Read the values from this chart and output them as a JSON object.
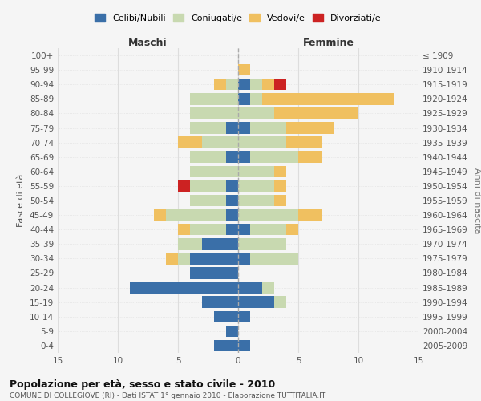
{
  "age_groups": [
    "0-4",
    "5-9",
    "10-14",
    "15-19",
    "20-24",
    "25-29",
    "30-34",
    "35-39",
    "40-44",
    "45-49",
    "50-54",
    "55-59",
    "60-64",
    "65-69",
    "70-74",
    "75-79",
    "80-84",
    "85-89",
    "90-94",
    "95-99",
    "100+"
  ],
  "birth_years": [
    "2005-2009",
    "2000-2004",
    "1995-1999",
    "1990-1994",
    "1985-1989",
    "1980-1984",
    "1975-1979",
    "1970-1974",
    "1965-1969",
    "1960-1964",
    "1955-1959",
    "1950-1954",
    "1945-1949",
    "1940-1944",
    "1935-1939",
    "1930-1934",
    "1925-1929",
    "1920-1924",
    "1915-1919",
    "1910-1914",
    "≤ 1909"
  ],
  "male": {
    "celibi": [
      2,
      1,
      2,
      3,
      9,
      4,
      4,
      3,
      1,
      1,
      1,
      1,
      0,
      1,
      0,
      1,
      0,
      0,
      0,
      0,
      0
    ],
    "coniugati": [
      0,
      0,
      0,
      0,
      0,
      0,
      1,
      2,
      3,
      5,
      3,
      3,
      4,
      3,
      3,
      3,
      4,
      4,
      1,
      0,
      0
    ],
    "vedovi": [
      0,
      0,
      0,
      0,
      0,
      0,
      1,
      0,
      1,
      1,
      0,
      0,
      0,
      0,
      2,
      0,
      0,
      0,
      1,
      0,
      0
    ],
    "divorziati": [
      0,
      0,
      0,
      0,
      0,
      0,
      0,
      0,
      0,
      0,
      0,
      1,
      0,
      0,
      0,
      0,
      0,
      0,
      0,
      0,
      0
    ]
  },
  "female": {
    "nubili": [
      1,
      0,
      1,
      3,
      2,
      0,
      1,
      0,
      1,
      0,
      0,
      0,
      0,
      1,
      0,
      1,
      0,
      1,
      1,
      0,
      0
    ],
    "coniugate": [
      0,
      0,
      0,
      1,
      1,
      0,
      4,
      4,
      3,
      5,
      3,
      3,
      3,
      4,
      4,
      3,
      3,
      1,
      1,
      0,
      0
    ],
    "vedove": [
      0,
      0,
      0,
      0,
      0,
      0,
      0,
      0,
      1,
      2,
      1,
      1,
      1,
      2,
      3,
      4,
      7,
      11,
      1,
      1,
      0
    ],
    "divorziate": [
      0,
      0,
      0,
      0,
      0,
      0,
      0,
      0,
      0,
      0,
      0,
      0,
      0,
      0,
      0,
      0,
      0,
      0,
      1,
      0,
      0
    ]
  },
  "colors": {
    "celibi_nubili": "#3a6fa8",
    "coniugati": "#c8d9b0",
    "vedovi": "#f0c060",
    "divorziati": "#cc2222"
  },
  "xlim": 15,
  "title": "Popolazione per età, sesso e stato civile - 2010",
  "subtitle": "COMUNE DI COLLEGIOVE (RI) - Dati ISTAT 1° gennaio 2010 - Elaborazione TUTTITALIA.IT",
  "xlabel_left": "Maschi",
  "xlabel_right": "Femmine",
  "ylabel_left": "Fasce di età",
  "ylabel_right": "Anni di nascita",
  "legend_labels": [
    "Celibi/Nubili",
    "Coniugati/e",
    "Vedovi/e",
    "Divorziati/e"
  ],
  "background_color": "#f5f5f5",
  "grid_color": "#dddddd"
}
